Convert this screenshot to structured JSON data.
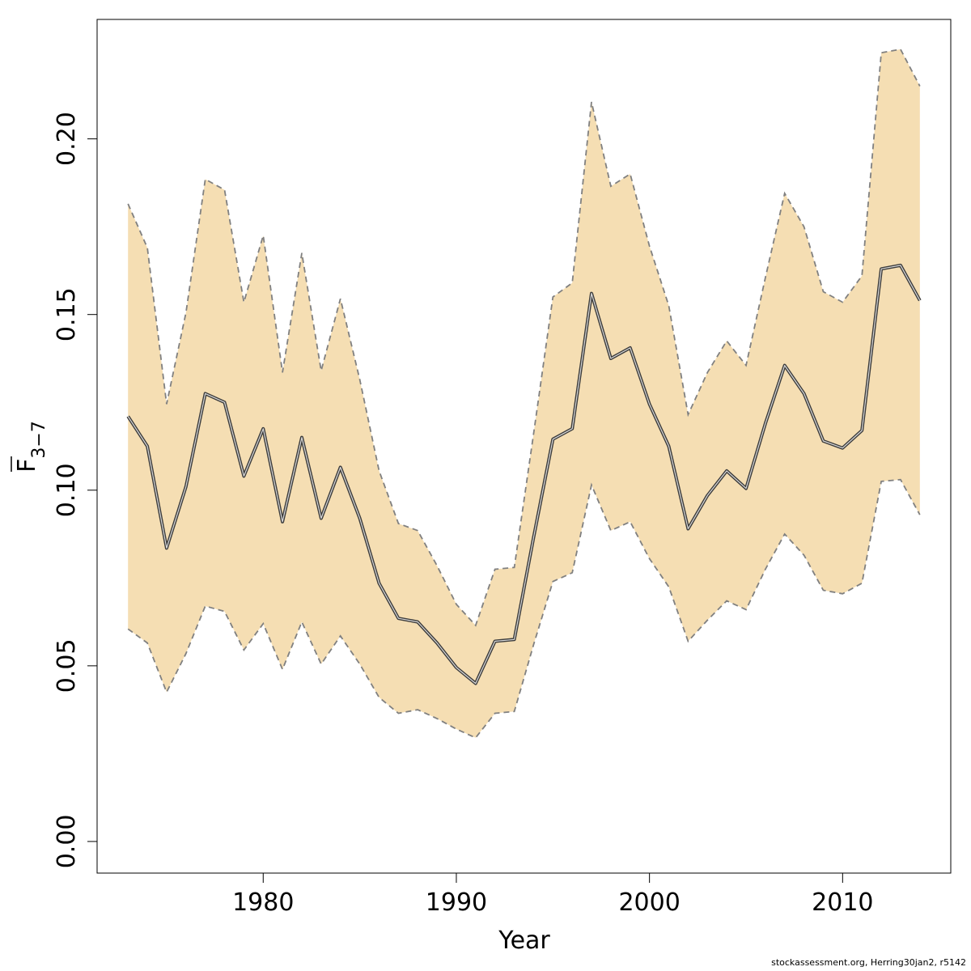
{
  "chart_data": {
    "type": "area",
    "xlabel": "Year",
    "ylabel": "F",
    "ylabel_subscript": "3−7",
    "xlim": [
      1971.4,
      2015.6
    ],
    "ylim": [
      -0.009,
      0.234
    ],
    "x_ticks": [
      1980,
      1990,
      2000,
      2010
    ],
    "y_ticks": [
      "0.00",
      "0.05",
      "0.10",
      "0.15",
      "0.20"
    ],
    "grid": false,
    "x": [
      1973,
      1974,
      1975,
      1976,
      1977,
      1978,
      1979,
      1980,
      1981,
      1982,
      1983,
      1984,
      1985,
      1986,
      1987,
      1988,
      1989,
      1990,
      1991,
      1992,
      1993,
      1994,
      1995,
      1996,
      1997,
      1998,
      1999,
      2000,
      2001,
      2002,
      2003,
      2004,
      2005,
      2006,
      2007,
      2008,
      2009,
      2010,
      2011,
      2012,
      2013,
      2014
    ],
    "series": [
      {
        "role": "estimate",
        "values": [
          0.121,
          0.1125,
          0.0835,
          0.101,
          0.1275,
          0.125,
          0.104,
          0.1175,
          0.091,
          0.115,
          0.092,
          0.1065,
          0.092,
          0.0735,
          0.0635,
          0.0625,
          0.0565,
          0.0495,
          0.045,
          0.057,
          0.0575,
          0.0865,
          0.1145,
          0.1175,
          0.156,
          0.1375,
          0.1405,
          0.1245,
          0.1125,
          0.089,
          0.0985,
          0.1055,
          0.1005,
          0.119,
          0.1355,
          0.1275,
          0.114,
          0.112,
          0.117,
          0.163,
          0.164,
          0.154
        ]
      },
      {
        "role": "upper",
        "values": [
          0.1815,
          0.169,
          0.1245,
          0.1505,
          0.1885,
          0.1855,
          0.1535,
          0.1725,
          0.1335,
          0.1675,
          0.134,
          0.1545,
          0.1315,
          0.1055,
          0.0905,
          0.0885,
          0.0785,
          0.0675,
          0.0615,
          0.0775,
          0.078,
          0.116,
          0.155,
          0.159,
          0.2105,
          0.1865,
          0.19,
          0.1695,
          0.1525,
          0.1215,
          0.1335,
          0.1425,
          0.1355,
          0.1605,
          0.1845,
          0.175,
          0.1565,
          0.1535,
          0.161,
          0.2245,
          0.2255,
          0.215
        ]
      },
      {
        "role": "lower",
        "values": [
          0.0605,
          0.0565,
          0.0425,
          0.0535,
          0.067,
          0.0655,
          0.0545,
          0.062,
          0.049,
          0.0625,
          0.0505,
          0.0585,
          0.0505,
          0.041,
          0.0365,
          0.0375,
          0.035,
          0.032,
          0.0295,
          0.0365,
          0.037,
          0.056,
          0.074,
          0.0765,
          0.1015,
          0.0885,
          0.091,
          0.0805,
          0.0725,
          0.057,
          0.063,
          0.0685,
          0.066,
          0.0775,
          0.0875,
          0.0815,
          0.0715,
          0.0705,
          0.0735,
          0.1025,
          0.103,
          0.093
        ]
      }
    ],
    "colors": {
      "band_fill": "#f5deb3",
      "band_edge": "#808080",
      "line": "#3c3c3c",
      "axis": "#000000"
    }
  },
  "footer": "stockassessment.org, Herring30jan2, r5142"
}
